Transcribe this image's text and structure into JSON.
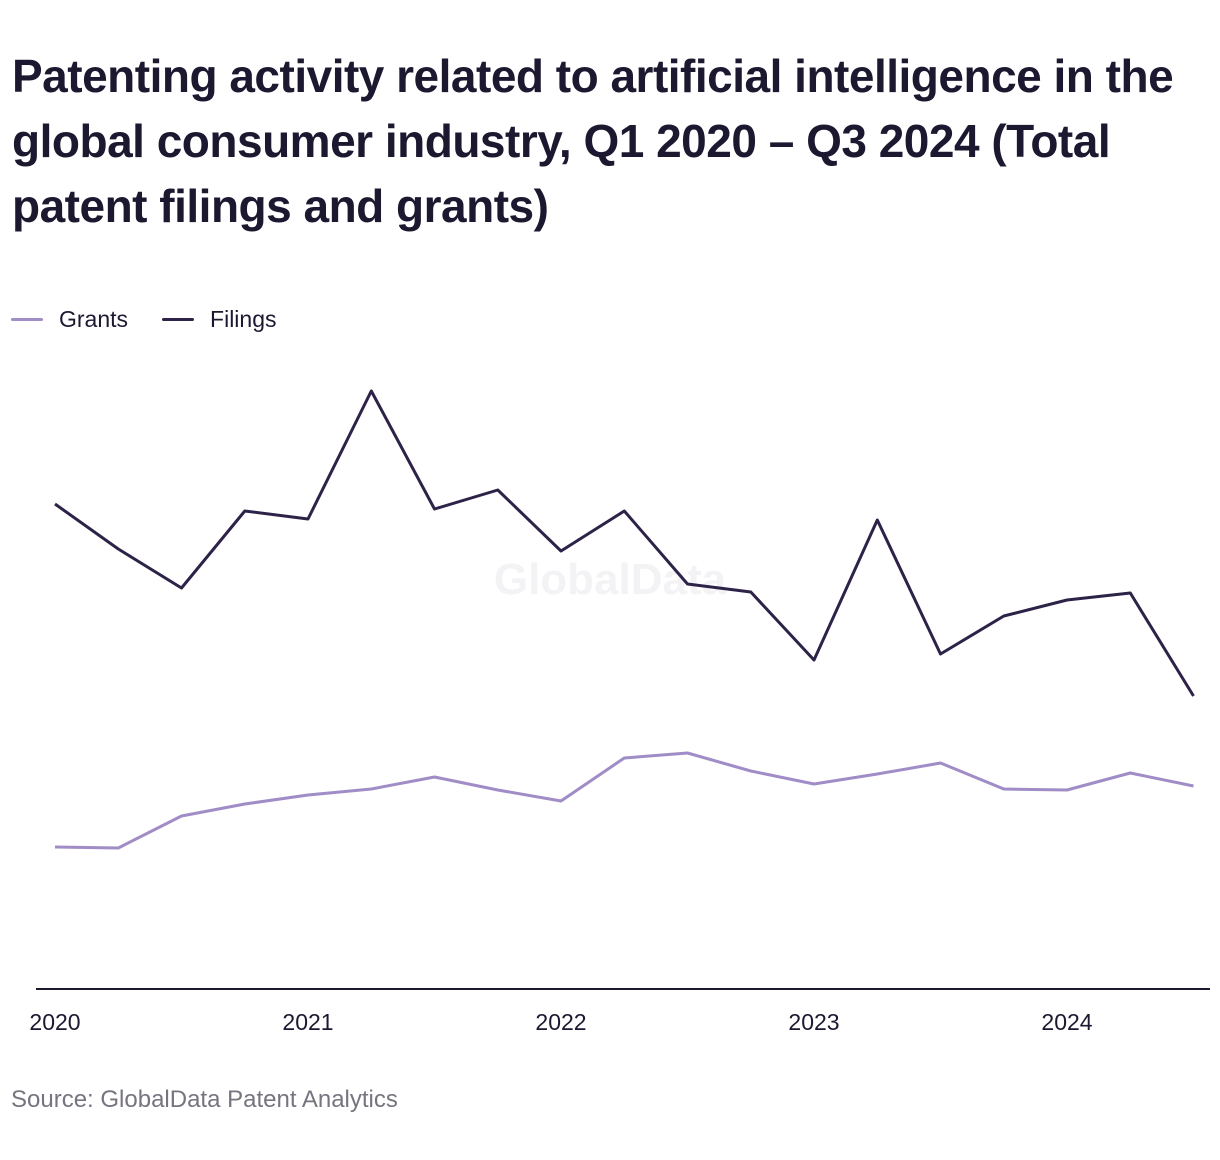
{
  "colors": {
    "grants": "#a08cc6",
    "filings": "#2d2247",
    "axis": "#1c1830",
    "watermark": "#f3f2f5"
  },
  "chart_data": {
    "type": "line",
    "title": "Patenting activity related to artificial intelligence in the global consumer industry, Q1 2020 – Q3 2024 (Total patent filings and grants)",
    "xlabel": "",
    "ylabel": "",
    "legend_position": "top-left",
    "grid": false,
    "x": [
      "2020Q1",
      "2020Q2",
      "2020Q3",
      "2020Q4",
      "2021Q1",
      "2021Q2",
      "2021Q3",
      "2021Q4",
      "2022Q1",
      "2022Q2",
      "2022Q3",
      "2022Q4",
      "2023Q1",
      "2023Q2",
      "2023Q3",
      "2023Q4",
      "2024Q1",
      "2024Q2",
      "2024Q3"
    ],
    "x_ticks": [
      "2020",
      "2021",
      "2022",
      "2023",
      "2024"
    ],
    "ylim": [
      0,
      600
    ],
    "series": [
      {
        "name": "Grants",
        "values": [
          142,
          141,
          173,
          185,
          194,
          200,
          212,
          199,
          188,
          231,
          236,
          218,
          205,
          215,
          226,
          200,
          199,
          216,
          203
        ]
      },
      {
        "name": "Filings",
        "values": [
          485,
          440,
          401,
          478,
          470,
          598,
          480,
          499,
          438,
          478,
          405,
          397,
          329,
          469,
          335,
          373,
          389,
          396,
          293
        ]
      }
    ]
  },
  "watermark": "GlobalData",
  "source": "Source: GlobalData Patent Analytics"
}
